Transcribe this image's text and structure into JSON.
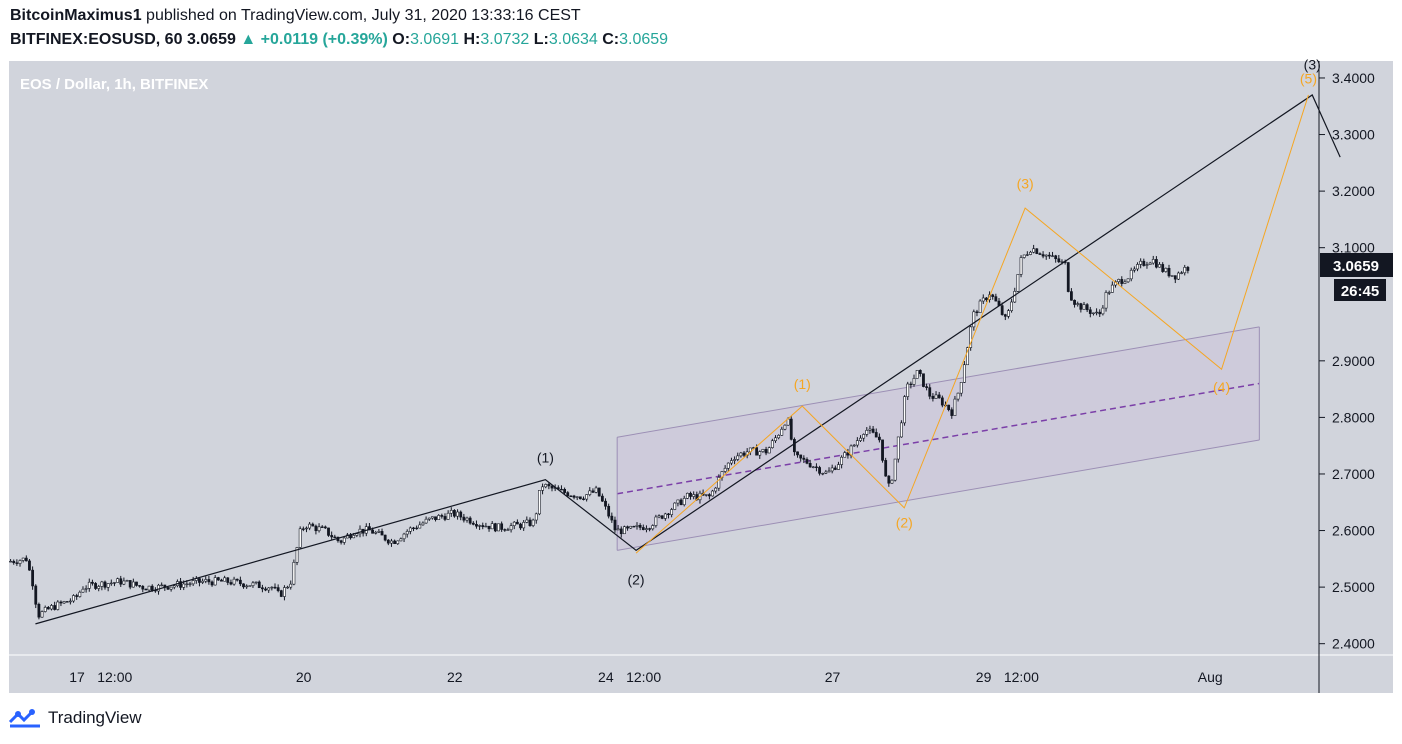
{
  "header": {
    "author": "BitcoinMaximus1",
    "published_text": "published on TradingView.com, July 31, 2020 13:33:16 CEST",
    "symbol": "BITFINEX:EOSUSD, 60",
    "last": "3.0659",
    "change": "+0.0119 (+0.39%)",
    "open_label": "O:",
    "open": "3.0691",
    "high_label": "H:",
    "high": "3.0732",
    "low_label": "L:",
    "low": "3.0634",
    "close_label": "C:",
    "close": "3.0659"
  },
  "pane_title": "EOS / Dollar, 1h, BITFINEX",
  "price_badge": "3.0659",
  "countdown_badge": "26:45",
  "footer": {
    "brand": "TradingView"
  },
  "colors": {
    "background": "#d1d4dc",
    "candle": "#131722",
    "wave_major": "#131722",
    "wave_minor": "#f5a623",
    "channel": "#9c8fb5",
    "channel_mid": "#7b3fa8"
  },
  "chart_data": {
    "type": "candlestick",
    "title": "EOS / Dollar, 1h, BITFINEX",
    "ylim": [
      2.38,
      3.43
    ],
    "y_ticks": [
      {
        "v": 3.4,
        "label": "3.4000"
      },
      {
        "v": 3.3,
        "label": "3.3000"
      },
      {
        "v": 3.2,
        "label": "3.2000"
      },
      {
        "v": 3.1,
        "label": "3.1000"
      },
      {
        "v": 2.9,
        "label": "2.9000"
      },
      {
        "v": 2.8,
        "label": "2.8000"
      },
      {
        "v": 2.7,
        "label": "2.7000"
      },
      {
        "v": 2.6,
        "label": "2.6000"
      },
      {
        "v": 2.5,
        "label": "2.5000"
      },
      {
        "v": 2.4,
        "label": "2.4000"
      }
    ],
    "x_ticks": [
      {
        "t": 0.9,
        "label": "17"
      },
      {
        "t": 1.4,
        "label": "12:00"
      },
      {
        "t": 3.9,
        "label": "20"
      },
      {
        "t": 5.9,
        "label": "22"
      },
      {
        "t": 7.9,
        "label": "24"
      },
      {
        "t": 8.4,
        "label": "12:00"
      },
      {
        "t": 10.9,
        "label": "27"
      },
      {
        "t": 12.9,
        "label": "29"
      },
      {
        "t": 13.4,
        "label": "12:00"
      },
      {
        "t": 15.9,
        "label": "Aug"
      }
    ],
    "x_range": [
      0,
      17.3
    ],
    "price_path": [
      [
        0.0,
        2.545
      ],
      [
        0.25,
        2.55
      ],
      [
        0.35,
        2.5
      ],
      [
        0.4,
        2.45
      ],
      [
        0.6,
        2.465
      ],
      [
        0.9,
        2.48
      ],
      [
        1.0,
        2.5
      ],
      [
        1.2,
        2.505
      ],
      [
        1.5,
        2.51
      ],
      [
        1.8,
        2.5
      ],
      [
        2.0,
        2.5
      ],
      [
        2.3,
        2.505
      ],
      [
        2.6,
        2.51
      ],
      [
        2.9,
        2.51
      ],
      [
        3.2,
        2.505
      ],
      [
        3.5,
        2.5
      ],
      [
        3.6,
        2.485
      ],
      [
        3.75,
        2.51
      ],
      [
        3.82,
        2.56
      ],
      [
        3.88,
        2.6
      ],
      [
        3.95,
        2.61
      ],
      [
        4.2,
        2.6
      ],
      [
        4.4,
        2.58
      ],
      [
        4.6,
        2.6
      ],
      [
        4.8,
        2.6
      ],
      [
        4.95,
        2.59
      ],
      [
        5.1,
        2.58
      ],
      [
        5.3,
        2.6
      ],
      [
        5.6,
        2.62
      ],
      [
        5.9,
        2.63
      ],
      [
        6.1,
        2.62
      ],
      [
        6.3,
        2.61
      ],
      [
        6.5,
        2.605
      ],
      [
        6.8,
        2.61
      ],
      [
        6.98,
        2.615
      ],
      [
        7.03,
        2.66
      ],
      [
        7.08,
        2.68
      ],
      [
        7.3,
        2.67
      ],
      [
        7.6,
        2.66
      ],
      [
        7.8,
        2.67
      ],
      [
        7.95,
        2.63
      ],
      [
        8.05,
        2.6
      ],
      [
        8.2,
        2.6
      ],
      [
        8.5,
        2.61
      ],
      [
        8.8,
        2.64
      ],
      [
        9.0,
        2.66
      ],
      [
        9.3,
        2.66
      ],
      [
        9.45,
        2.7
      ],
      [
        9.6,
        2.73
      ],
      [
        9.8,
        2.74
      ],
      [
        10.05,
        2.74
      ],
      [
        10.2,
        2.77
      ],
      [
        10.32,
        2.8
      ],
      [
        10.42,
        2.73
      ],
      [
        10.6,
        2.72
      ],
      [
        10.85,
        2.7
      ],
      [
        11.0,
        2.72
      ],
      [
        11.2,
        2.75
      ],
      [
        11.35,
        2.78
      ],
      [
        11.55,
        2.76
      ],
      [
        11.65,
        2.67
      ],
      [
        11.72,
        2.7
      ],
      [
        11.8,
        2.77
      ],
      [
        11.9,
        2.85
      ],
      [
        12.05,
        2.88
      ],
      [
        12.2,
        2.84
      ],
      [
        12.35,
        2.83
      ],
      [
        12.5,
        2.81
      ],
      [
        12.6,
        2.85
      ],
      [
        12.7,
        2.92
      ],
      [
        12.78,
        2.98
      ],
      [
        12.88,
        3.0
      ],
      [
        13.0,
        3.02
      ],
      [
        13.1,
        3.0
      ],
      [
        13.22,
        2.97
      ],
      [
        13.32,
        3.02
      ],
      [
        13.42,
        3.08
      ],
      [
        13.55,
        3.1
      ],
      [
        13.7,
        3.09
      ],
      [
        13.85,
        3.08
      ],
      [
        14.0,
        3.07
      ],
      [
        14.05,
        3.02
      ],
      [
        14.15,
        3.0
      ],
      [
        14.3,
        2.99
      ],
      [
        14.45,
        2.98
      ],
      [
        14.55,
        3.02
      ],
      [
        14.7,
        3.04
      ],
      [
        14.85,
        3.05
      ],
      [
        15.0,
        3.07
      ],
      [
        15.15,
        3.08
      ],
      [
        15.3,
        3.06
      ],
      [
        15.45,
        3.05
      ],
      [
        15.6,
        3.065
      ]
    ],
    "channel": {
      "upper": [
        [
          8.05,
          2.765
        ],
        [
          16.55,
          2.96
        ]
      ],
      "mid": [
        [
          8.05,
          2.665
        ],
        [
          16.55,
          2.86
        ]
      ],
      "lower": [
        [
          8.05,
          2.565
        ],
        [
          16.55,
          2.76
        ]
      ]
    },
    "wave_major": [
      [
        0.35,
        2.435
      ],
      [
        7.1,
        2.69
      ],
      [
        8.3,
        2.565
      ],
      [
        17.25,
        3.37
      ],
      [
        17.62,
        3.26
      ]
    ],
    "wave_minor": [
      [
        8.3,
        2.56
      ],
      [
        10.5,
        2.82
      ],
      [
        11.85,
        2.64
      ],
      [
        13.45,
        3.17
      ],
      [
        16.05,
        2.885
      ],
      [
        17.2,
        3.37
      ]
    ],
    "labels_major": [
      {
        "t": 7.1,
        "v": 2.72,
        "text": "(1)"
      },
      {
        "t": 8.3,
        "v": 2.505,
        "text": "(2)"
      },
      {
        "t": 17.25,
        "v": 3.415,
        "text": "(3)"
      }
    ],
    "labels_minor": [
      {
        "t": 10.5,
        "v": 2.85,
        "text": "(1)"
      },
      {
        "t": 11.85,
        "v": 2.605,
        "text": "(2)"
      },
      {
        "t": 13.45,
        "v": 3.205,
        "text": "(3)"
      },
      {
        "t": 16.05,
        "v": 2.845,
        "text": "(4)"
      },
      {
        "t": 17.2,
        "v": 3.39,
        "text": "(5)"
      }
    ]
  }
}
